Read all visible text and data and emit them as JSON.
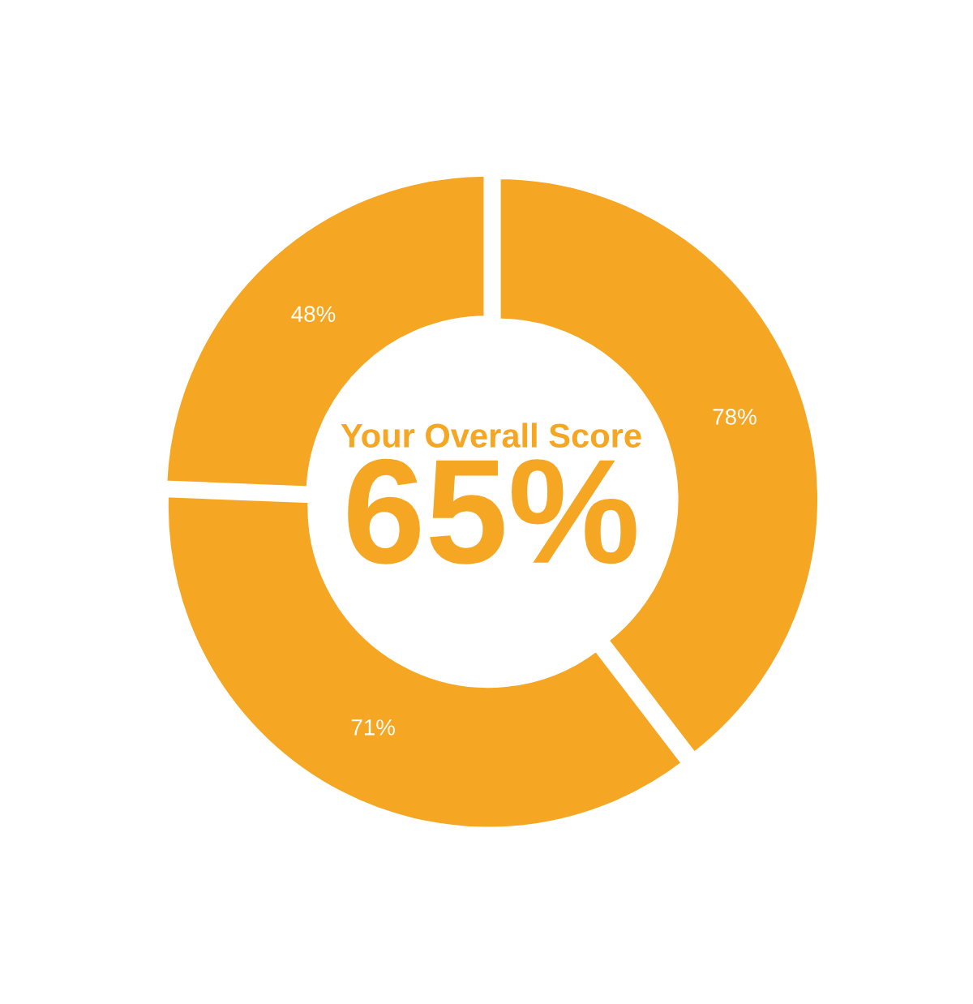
{
  "chart_data": {
    "type": "donut",
    "title": "Your Overall Score",
    "annotations": [
      "65%"
    ],
    "categories": [
      null,
      null,
      null
    ],
    "values": [
      78,
      71,
      48
    ],
    "value_labels": [
      "78%",
      "71%",
      "48%"
    ],
    "colors": [
      "#f5a623",
      "#f5a623",
      "#f5a623"
    ]
  }
}
